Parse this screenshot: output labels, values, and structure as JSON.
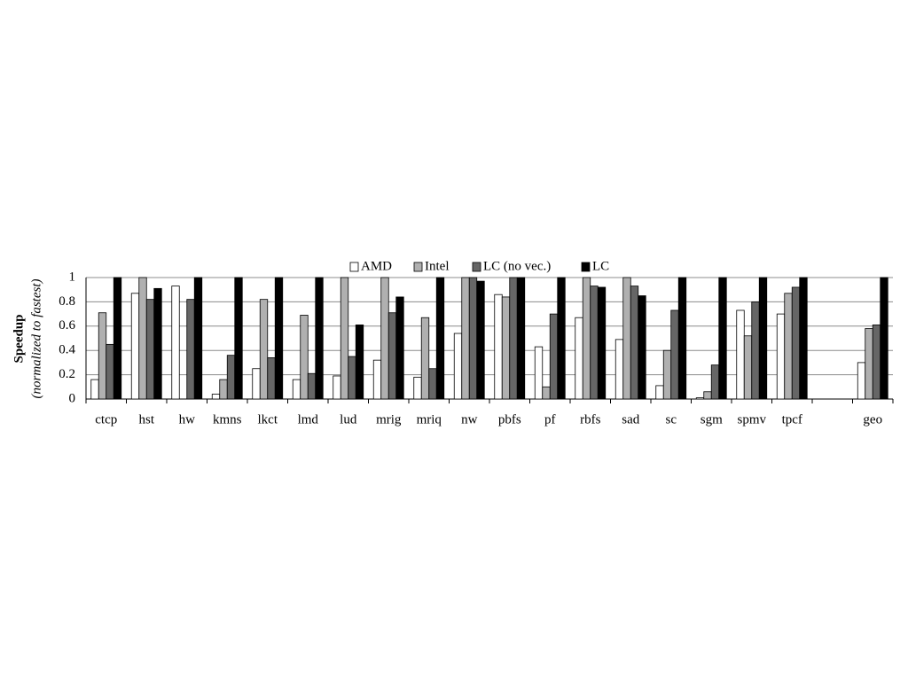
{
  "chart_data": {
    "type": "bar",
    "ylabel": "Speedup",
    "ylabel_sub": "(normalized to fastest)",
    "categories": [
      "ctcp",
      "hst",
      "hw",
      "kmns",
      "lkct",
      "lmd",
      "lud",
      "mrig",
      "mriq",
      "nw",
      "pbfs",
      "pf",
      "rbfs",
      "sad",
      "sc",
      "sgm",
      "spmv",
      "tpcf",
      null,
      "geo"
    ],
    "series": [
      {
        "name": "AMD",
        "color": "#ffffff",
        "values": [
          0.16,
          0.87,
          0.93,
          0.04,
          0.25,
          0.16,
          0.19,
          0.32,
          0.18,
          0.54,
          0.86,
          0.43,
          0.67,
          0.49,
          0.11,
          0.01,
          0.73,
          0.7,
          null,
          0.3
        ]
      },
      {
        "name": "Intel",
        "color": "#b0b0b0",
        "values": [
          0.71,
          1,
          0,
          0.16,
          0.82,
          0.69,
          1,
          1,
          0.67,
          1,
          0.84,
          0.1,
          1,
          1,
          0.4,
          0.06,
          0.52,
          0.87,
          null,
          0.58
        ]
      },
      {
        "name": "LC (no vec.)",
        "color": "#666666",
        "values": [
          0.45,
          0.82,
          0.82,
          0.36,
          0.34,
          0.21,
          0.35,
          0.71,
          0.25,
          1,
          1,
          0.7,
          0.93,
          0.93,
          0.73,
          0.28,
          0.8,
          0.92,
          null,
          0.61
        ]
      },
      {
        "name": "LC",
        "color": "#000000",
        "values": [
          1,
          0.91,
          1,
          1,
          1,
          1,
          0.61,
          0.84,
          1,
          0.97,
          1,
          1,
          0.92,
          0.85,
          1,
          1,
          1,
          1,
          null,
          1
        ]
      }
    ],
    "ylim": [
      0,
      1
    ],
    "yticks": [
      0,
      0.2,
      0.4,
      0.6,
      0.8,
      1
    ],
    "grid": true,
    "legend": "top"
  }
}
